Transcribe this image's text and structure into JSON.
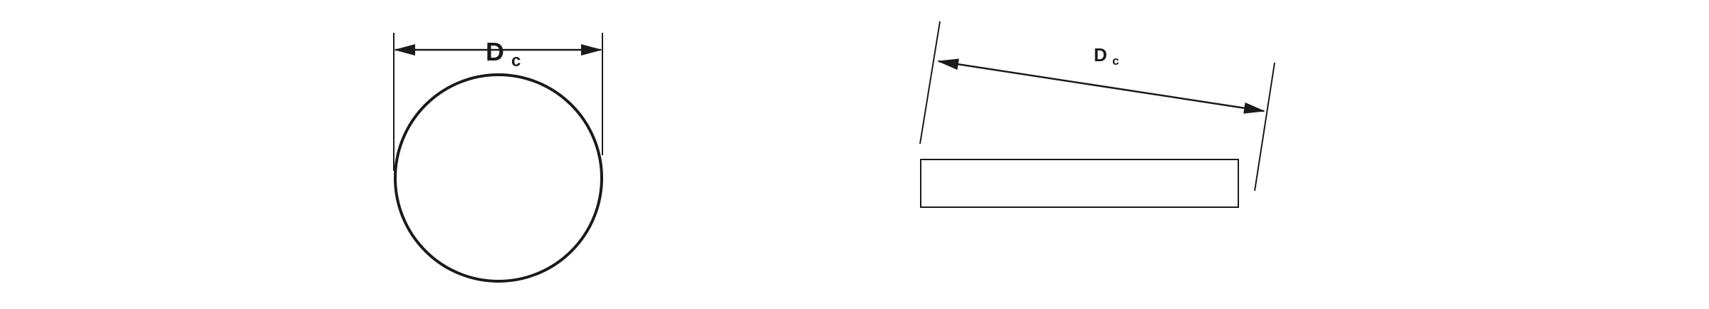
{
  "colors": {
    "background": "#ffffff",
    "stroke": "#1a1a1a"
  },
  "figures": {
    "circle_view": {
      "dimension_label": {
        "main": "D",
        "subscript": "c"
      }
    },
    "edge_view": {
      "dimension_label": {
        "main": "D",
        "subscript": "c"
      }
    }
  },
  "icons": {
    "arrowhead": "arrowhead-icon"
  }
}
